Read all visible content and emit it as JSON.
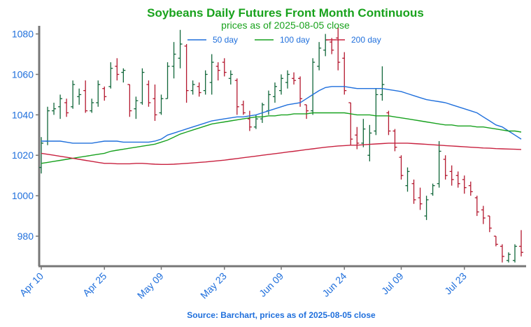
{
  "chart_data": {
    "type": "ohlc",
    "title": "Soybeans Daily Futures Front Month Continuous",
    "subtitle": "prices as of 2025-08-05 close",
    "source": "Source: Barchart, prices as of 2025-08-05 close",
    "categories": [
      "Apr 10",
      null,
      null,
      null,
      null,
      null,
      null,
      null,
      null,
      null,
      "Apr 25",
      null,
      null,
      null,
      null,
      null,
      null,
      null,
      null,
      "May 09",
      null,
      null,
      null,
      null,
      null,
      null,
      null,
      null,
      null,
      "May 23",
      null,
      null,
      null,
      null,
      null,
      null,
      null,
      null,
      "Jun 09",
      null,
      null,
      null,
      null,
      null,
      null,
      null,
      null,
      null,
      "Jun 24",
      null,
      null,
      null,
      null,
      null,
      null,
      null,
      null,
      "Jul 09",
      null,
      null,
      null,
      null,
      null,
      null,
      null,
      null,
      null,
      "Jul 23",
      null,
      null,
      null,
      null,
      null,
      null,
      null,
      null,
      null
    ],
    "open": [
      1014,
      1027,
      1042,
      1044,
      1046,
      1044,
      1049,
      1052,
      1042,
      1046,
      1053,
      1054,
      1064,
      1061,
      1055,
      1043,
      1046,
      1055,
      1048,
      1041,
      1048,
      1064,
      1068,
      1074,
      1052,
      1054,
      1052,
      1056,
      1064,
      1066,
      1058,
      1057,
      1045,
      1038,
      1034,
      1038,
      1042,
      1049,
      1052,
      1056,
      1058,
      1058,
      1045,
      1042,
      1064,
      1072,
      1076,
      1078,
      1068,
      1046,
      1030,
      1026,
      1020,
      1032,
      1050,
      1041,
      1032,
      1019,
      1005,
      1006,
      999,
      990,
      1001,
      1006,
      1018,
      1012,
      1010,
      1008,
      1005,
      999,
      993,
      990,
      980,
      975,
      968,
      968,
      975
    ],
    "high": [
      1029,
      1044,
      1046,
      1050,
      1048,
      1057,
      1053,
      1057,
      1048,
      1057,
      1054,
      1066,
      1068,
      1063,
      1055,
      1049,
      1063,
      1057,
      1055,
      1050,
      1066,
      1076,
      1082,
      1075,
      1057,
      1056,
      1062,
      1070,
      1066,
      1068,
      1062,
      1058,
      1047,
      1042,
      1040,
      1046,
      1052,
      1056,
      1060,
      1062,
      1061,
      1059,
      1045,
      1068,
      1076,
      1080,
      1078,
      1083,
      1071,
      1046,
      1034,
      1038,
      1035,
      1053,
      1064,
      1042,
      1033,
      1020,
      1014,
      1008,
      1004,
      1000,
      1006,
      1027,
      1020,
      1015,
      1012,
      1010,
      1007,
      1000,
      995,
      990,
      980,
      976,
      972,
      976,
      983
    ],
    "low": [
      1011,
      1025,
      1040,
      1038,
      1039,
      1043,
      1045,
      1041,
      1041,
      1044,
      1047,
      1053,
      1057,
      1056,
      1039,
      1038,
      1045,
      1044,
      1037,
      1040,
      1048,
      1058,
      1063,
      1046,
      1050,
      1049,
      1050,
      1050,
      1057,
      1059,
      1055,
      1040,
      1040,
      1032,
      1033,
      1036,
      1040,
      1046,
      1050,
      1053,
      1055,
      1044,
      1038,
      1040,
      1062,
      1069,
      1070,
      1062,
      1050,
      1025,
      1023,
      1024,
      1017,
      1030,
      1047,
      1030,
      1022,
      1008,
      1002,
      996,
      993,
      988,
      1000,
      1004,
      1008,
      1005,
      1004,
      1001,
      1000,
      990,
      986,
      982,
      975,
      967,
      967,
      967,
      970
    ],
    "close": [
      1026,
      1042,
      1043,
      1048,
      1041,
      1055,
      1050,
      1042,
      1046,
      1055,
      1049,
      1063,
      1060,
      1062,
      1042,
      1047,
      1061,
      1046,
      1040,
      1048,
      1064,
      1070,
      1075,
      1052,
      1055,
      1051,
      1060,
      1066,
      1062,
      1061,
      1060,
      1044,
      1041,
      1034,
      1038,
      1045,
      1050,
      1054,
      1058,
      1060,
      1057,
      1048,
      1042,
      1066,
      1073,
      1077,
      1072,
      1066,
      1052,
      1028,
      1026,
      1033,
      1031,
      1050,
      1055,
      1032,
      1024,
      1010,
      1012,
      998,
      996,
      998,
      1005,
      1022,
      1010,
      1008,
      1006,
      1004,
      1002,
      992,
      989,
      984,
      976,
      970,
      971,
      975,
      972
    ],
    "up_color": "#11673a",
    "down_color": "#b3172e",
    "series": [
      {
        "name": "50 day",
        "color": "#1f6fdc",
        "values": [
          1027,
          1027,
          1027,
          1027,
          1026.5,
          1026,
          1026,
          1026,
          1026,
          1026.5,
          1027,
          1027,
          1027,
          1026.5,
          1026.5,
          1026.5,
          1026.5,
          1026.5,
          1027,
          1028,
          1030,
          1031,
          1032,
          1033,
          1034,
          1035,
          1036,
          1037,
          1037.5,
          1038,
          1038.5,
          1039,
          1039,
          1039.5,
          1040,
          1041,
          1042,
          1043,
          1044,
          1045,
          1045.5,
          1046,
          1048,
          1050,
          1052,
          1053.5,
          1054,
          1054,
          1054,
          1053.5,
          1053,
          1053,
          1053,
          1053,
          1053,
          1052.5,
          1052,
          1051.5,
          1050.5,
          1049.5,
          1048.5,
          1047.5,
          1047,
          1046.5,
          1046,
          1045,
          1044,
          1043,
          1042,
          1041,
          1039,
          1037,
          1035,
          1034,
          1032,
          1030,
          1028
        ]
      },
      {
        "name": "100 day",
        "color": "#17a11e",
        "values": [
          1016,
          1016.5,
          1017,
          1017.5,
          1018,
          1018.5,
          1019,
          1019.5,
          1020,
          1020.5,
          1021,
          1022,
          1022.5,
          1023,
          1023.5,
          1024,
          1024.5,
          1025,
          1025.5,
          1026.5,
          1027.5,
          1029,
          1030.5,
          1031.5,
          1032.5,
          1033.5,
          1034.5,
          1035.5,
          1036,
          1036.5,
          1037,
          1037.5,
          1038,
          1038.5,
          1039,
          1039,
          1039.5,
          1039.5,
          1040,
          1040,
          1040.5,
          1040.5,
          1040.5,
          1041,
          1041,
          1041,
          1041,
          1041,
          1041,
          1040.5,
          1040,
          1040,
          1040,
          1039.5,
          1039.5,
          1039.5,
          1039,
          1038.5,
          1038,
          1037.5,
          1037,
          1036.5,
          1036,
          1035.5,
          1035,
          1035,
          1034.5,
          1034.5,
          1034.5,
          1034,
          1034,
          1033.5,
          1033,
          1032.5,
          1032,
          1032,
          1031.5
        ]
      },
      {
        "name": "200 day",
        "color": "#c8213f",
        "values": [
          1021,
          1020.5,
          1020,
          1019.5,
          1019,
          1018.5,
          1018,
          1017.5,
          1017,
          1016.5,
          1016,
          1016,
          1015.8,
          1015.8,
          1015.8,
          1016,
          1016,
          1015.8,
          1015.6,
          1015.5,
          1015.5,
          1015.6,
          1015.8,
          1016,
          1016.2,
          1016.5,
          1016.7,
          1017,
          1017.3,
          1017.6,
          1018,
          1018.4,
          1018.8,
          1019.2,
          1019.6,
          1020,
          1020.4,
          1020.8,
          1021.2,
          1021.6,
          1022,
          1022.4,
          1022.8,
          1023.2,
          1023.6,
          1024,
          1024.3,
          1024.6,
          1024.8,
          1025,
          1025,
          1025.2,
          1025.4,
          1025.6,
          1025.8,
          1026,
          1026,
          1026,
          1026,
          1025.8,
          1025.6,
          1025.4,
          1025.2,
          1025,
          1024.8,
          1024.6,
          1024.4,
          1024.2,
          1024,
          1023.8,
          1023.6,
          1023.5,
          1023.3,
          1023.2,
          1023.1,
          1023,
          1022.9
        ]
      }
    ],
    "ylim": [
      965.5,
      1084
    ],
    "yticks": [
      980,
      1000,
      1020,
      1040,
      1060,
      1080
    ],
    "legend": "upper center"
  }
}
